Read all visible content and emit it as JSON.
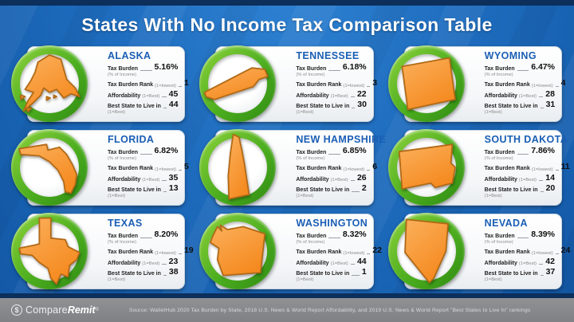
{
  "title": "States With No Income Tax Comparison Table",
  "labels": {
    "tax_burden": "Tax Burden",
    "tax_burden_sub": "(% of Income)",
    "tax_burden_rank": "Tax Burden Rank",
    "rank_paren": "(1=lowest)",
    "affordability": "Affordability",
    "best_paren": "(1=Best)",
    "best_state": "Best State to Live in",
    "best_state_sub": "(1=Best)"
  },
  "states": [
    {
      "name": "ALASKA",
      "tax_burden": "5.16%",
      "rank": "1",
      "affordability": "45",
      "best": "44"
    },
    {
      "name": "TENNESSEE",
      "tax_burden": "6.18%",
      "rank": "3",
      "affordability": "22",
      "best": "30"
    },
    {
      "name": "WYOMING",
      "tax_burden": "6.47%",
      "rank": "4",
      "affordability": "28",
      "best": "31"
    },
    {
      "name": "FLORIDA",
      "tax_burden": "6.82%",
      "rank": "5",
      "affordability": "35",
      "best": "13"
    },
    {
      "name": "NEW HAMPSHIRE",
      "tax_burden": "6.85%",
      "rank": "6",
      "affordability": "26",
      "best": "2"
    },
    {
      "name": "SOUTH DAKOTA",
      "tax_burden": "7.86%",
      "rank": "11",
      "affordability": "14",
      "best": "20"
    },
    {
      "name": "TEXAS",
      "tax_burden": "8.20%",
      "rank": "19",
      "affordability": "23",
      "best": "38"
    },
    {
      "name": "WASHINGTON",
      "tax_burden": "8.32%",
      "rank": "22",
      "affordability": "44",
      "best": "1"
    },
    {
      "name": "NEVADA",
      "tax_burden": "8.39%",
      "rank": "24",
      "affordability": "42",
      "best": "37"
    }
  ],
  "chart_data": {
    "type": "table",
    "title": "States With No Income Tax Comparison Table",
    "categories": [
      "Alaska",
      "Tennessee",
      "Wyoming",
      "Florida",
      "New Hampshire",
      "South Dakota",
      "Texas",
      "Washington",
      "Nevada"
    ],
    "series": [
      {
        "name": "Tax Burden (% of Income)",
        "values": [
          5.16,
          6.18,
          6.47,
          6.82,
          6.85,
          7.86,
          8.2,
          8.32,
          8.39
        ]
      },
      {
        "name": "Tax Burden Rank (1=lowest)",
        "values": [
          1,
          3,
          4,
          5,
          6,
          11,
          19,
          22,
          24
        ]
      },
      {
        "name": "Affordability (1=Best)",
        "values": [
          45,
          22,
          28,
          35,
          26,
          14,
          23,
          44,
          42
        ]
      },
      {
        "name": "Best State to Live in (1=Best)",
        "values": [
          44,
          30,
          31,
          13,
          2,
          20,
          38,
          1,
          37
        ]
      }
    ],
    "layout": "3x3 grid of state cards"
  },
  "footer": {
    "logo_icon": "circled-dollar",
    "logo_compare": "Compare",
    "logo_remit": "Remit",
    "logo_trademark": "®",
    "source": "Source:  WalletHub 2020 Tax Burden by State, 2018 U.S. News & World Report Affordability, and 2019 U.S. News & World Report \"Best States to Live In\" rankings"
  },
  "colors": {
    "background_blue": "#1e6cbe",
    "navy_strip": "#0c2f5c",
    "badge_green": "#4cae1f",
    "state_orange": "#f89c38",
    "state_orange_border": "#b26a16",
    "state_name_blue": "#1a5eb4",
    "footer_gray": "#85878a",
    "title_white": "#ffffff"
  }
}
